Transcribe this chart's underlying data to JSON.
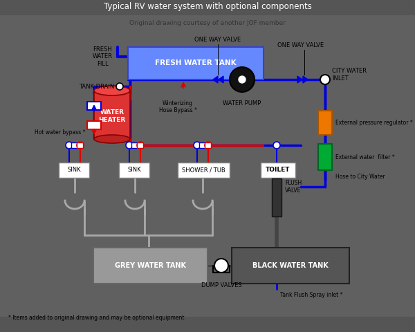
{
  "title": "Typical RV water system with optional components",
  "subtitle": "Original drawing courtesy of another JOF member",
  "footnote": "* Items added to original drawing and may be optional equipment",
  "bg_outer": "#666666",
  "bg_inner": "#ffffff",
  "blue": "#0000dd",
  "red": "#dd0000",
  "grey_line": "#aaaaaa",
  "dark_grey": "#444444",
  "green": "#00aa33",
  "orange": "#ee7700",
  "fresh_tank_color": "#6688ff",
  "water_heater_color": "#dd3333",
  "grey_tank_color": "#999999",
  "black_tank_color": "#555555",
  "flush_valve_color": "#333333"
}
